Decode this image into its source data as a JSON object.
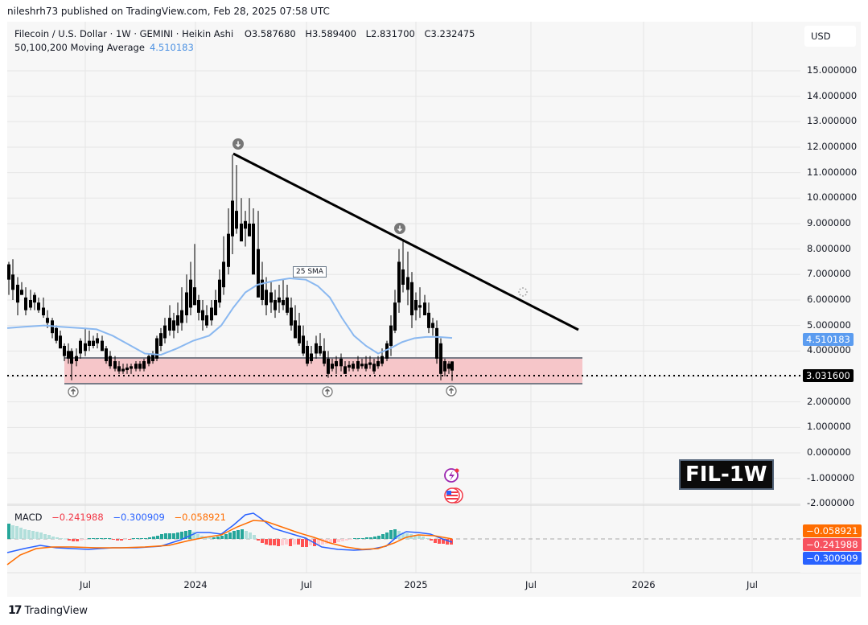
{
  "publisher_line": "nileshrh73 published on TradingView.com, Feb 28, 2025 07:58 UTC",
  "symbol": {
    "title": "Filecoin / U.S. Dollar · 1W · GEMINI · Heikin Ashi",
    "open": "O3.587680",
    "high": "H3.589400",
    "low": "L2.831700",
    "close": "C3.232475"
  },
  "ma_indicator": {
    "label": "50,100,200 Moving Average",
    "value": "4.510183"
  },
  "currency_button": "USD",
  "price_axis": {
    "ticks": [
      "15.000000",
      "14.000000",
      "13.000000",
      "12.000000",
      "11.000000",
      "10.000000",
      "9.000000",
      "8.000000",
      "7.000000",
      "6.000000",
      "5.000000",
      "4.000000",
      "2.000000",
      "1.000000",
      "0.000000",
      "-1.000000",
      "-2.000000"
    ],
    "ma_label": "4.510183",
    "last_price_label": "3.031600"
  },
  "macd": {
    "label": "MACD",
    "hist": "−0.241988",
    "macd": "−0.300909",
    "signal": "−0.058921",
    "axis_labels": {
      "signal": "−0.058921",
      "hist": "−0.241988",
      "macd": "−0.300909"
    }
  },
  "time_axis": [
    "Jul",
    "2024",
    "Jul",
    "2025",
    "Jul",
    "2026",
    "Jul"
  ],
  "sma_annotation": "25 SMA",
  "badge": "FIL-1W",
  "footer_brand": "TradingView",
  "colors": {
    "ma_line": "#8ab8f0",
    "zone_fill": "#f6c6c9",
    "zone_border": "#787b86",
    "trendline": "#000000",
    "macd_line": "#2962ff",
    "signal_line": "#ff6d00",
    "hist_up_strong": "#26a69a",
    "hist_up_weak": "#b2dfdb",
    "hist_down_strong": "#ff5252",
    "hist_down_weak": "#ffcdd2"
  },
  "chart_data": {
    "type": "candlestick",
    "title": "Filecoin / U.S. Dollar · 1W · GEMINI · Heikin Ashi",
    "xlabel": "",
    "ylabel": "USD",
    "ylim": [
      -2,
      15.5
    ],
    "x_ticks": [
      "Jul 2023",
      "2024",
      "Jul 2024",
      "2025",
      "Jul 2025",
      "2026",
      "Jul 2026"
    ],
    "ohlc_last": {
      "open": 3.58768,
      "high": 3.5894,
      "low": 2.8317,
      "close": 3.232475
    },
    "last_price": 3.0316,
    "moving_average_last": 4.510183,
    "support_zone": {
      "low": 2.85,
      "high": 3.7
    },
    "trendline": {
      "from": {
        "date": "2024-03",
        "price": 11.75
      },
      "to": {
        "date": "2025-10",
        "price": 4.8
      }
    },
    "swing_highs": [
      {
        "date": "2024-03",
        "price": 11.8
      },
      {
        "date": "2024-12",
        "price": 8.4
      }
    ],
    "swing_lows": [
      {
        "date": "2023-06",
        "price": 2.85
      },
      {
        "date": "2024-08",
        "price": 2.9
      },
      {
        "date": "2025-02",
        "price": 2.83
      }
    ],
    "sma25_approx": [
      {
        "date": "2023-03",
        "value": 4.85
      },
      {
        "date": "2023-06",
        "value": 4.95
      },
      {
        "date": "2023-09",
        "value": 4.55
      },
      {
        "date": "2023-11",
        "value": 3.8
      },
      {
        "date": "2024-01",
        "value": 4.3
      },
      {
        "date": "2024-03",
        "value": 5.5
      },
      {
        "date": "2024-05",
        "value": 6.8
      },
      {
        "date": "2024-07",
        "value": 6.2
      },
      {
        "date": "2024-09",
        "value": 4.3
      },
      {
        "date": "2024-11",
        "value": 3.9
      },
      {
        "date": "2025-01",
        "value": 4.7
      },
      {
        "date": "2025-02",
        "value": 4.51
      }
    ],
    "macd_last": {
      "macd": -0.300909,
      "signal": -0.058921,
      "histogram": -0.241988
    }
  }
}
